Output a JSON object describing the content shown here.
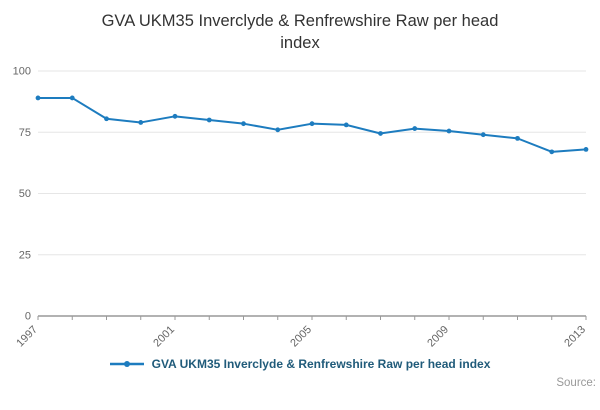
{
  "chart_data": {
    "type": "line",
    "title": "GVA UKM35 Inverclyde & Renfrewshire Raw per head index",
    "x": [
      1997,
      1998,
      1999,
      2000,
      2001,
      2002,
      2003,
      2004,
      2005,
      2006,
      2007,
      2008,
      2009,
      2010,
      2011,
      2012,
      2013
    ],
    "series": [
      {
        "name": "GVA UKM35 Inverclyde & Renfrewshire Raw per head index",
        "values": [
          89,
          89,
          80.5,
          79,
          81.5,
          80,
          78.5,
          76,
          78.5,
          78,
          74.5,
          76.5,
          75.5,
          74,
          72.5,
          67,
          68
        ]
      }
    ],
    "xlabel": "",
    "ylabel": "",
    "ylim": [
      0,
      100
    ],
    "yticks": [
      0,
      25,
      50,
      75,
      100
    ],
    "xticks": [
      1997,
      2001,
      2005,
      2009,
      2013
    ],
    "grid": "horizontal",
    "legend_position": "bottom"
  },
  "legend": {
    "label": "GVA UKM35 Inverclyde & Renfrewshire Raw per head index"
  },
  "source": {
    "label": "Source:"
  },
  "colors": {
    "line": "#1d7cbf",
    "legend_text": "#205b7a",
    "axis_text": "#666666",
    "gridline": "#e6e6e6",
    "axis_line": "#666666",
    "title_text": "#333333",
    "source_text": "#999999"
  }
}
